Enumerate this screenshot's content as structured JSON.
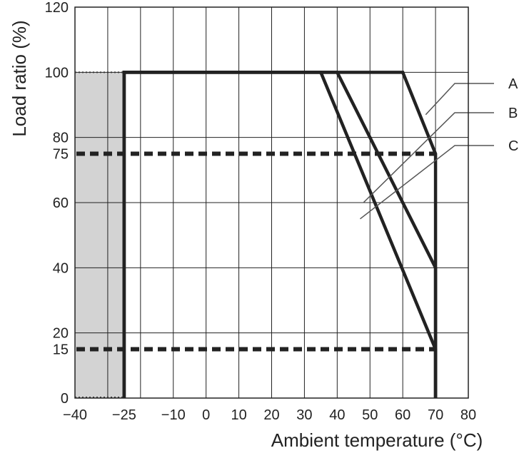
{
  "chart_data": {
    "type": "line",
    "xlabel": "Ambient temperature (°C)",
    "ylabel": "Load ratio (%)",
    "xlim": [
      -40,
      80
    ],
    "ylim": [
      0,
      120
    ],
    "x_ticks": [
      -40,
      -25,
      -10,
      0,
      10,
      20,
      30,
      40,
      50,
      60,
      70,
      80
    ],
    "x_tick_labels": [
      "−40",
      "−25",
      "−10",
      "0",
      "10",
      "20",
      "30",
      "40",
      "50",
      "60",
      "70",
      "80"
    ],
    "x_grid": [
      -40,
      -30,
      -20,
      -10,
      0,
      10,
      20,
      30,
      40,
      50,
      60,
      70,
      80
    ],
    "y_ticks": [
      0,
      15,
      20,
      40,
      60,
      75,
      80,
      100,
      120
    ],
    "y_tick_labels": [
      "0",
      "15",
      "20",
      "40",
      "60",
      "75",
      "80",
      "100",
      "120"
    ],
    "y_grid": [
      0,
      20,
      40,
      60,
      80,
      100,
      120
    ],
    "grid": true,
    "shaded_region": {
      "x": [
        -40,
        -25
      ],
      "y": [
        0,
        100
      ],
      "color": "#d3d3d3"
    },
    "dashed_lines": [
      {
        "y": 75,
        "x": [
          -40,
          70
        ]
      },
      {
        "y": 15,
        "x": [
          -40,
          70
        ]
      }
    ],
    "series": [
      {
        "name": "A",
        "x": [
          -25,
          -25,
          60,
          70,
          70
        ],
        "y": [
          0,
          100,
          100,
          75,
          0
        ]
      },
      {
        "name": "B",
        "x": [
          -25,
          -25,
          40,
          70,
          70
        ],
        "y": [
          0,
          100,
          100,
          40,
          0
        ]
      },
      {
        "name": "C",
        "x": [
          -25,
          -25,
          35,
          70,
          70
        ],
        "y": [
          0,
          100,
          100,
          15,
          0
        ]
      }
    ],
    "legend_position": "right",
    "colors": {
      "line": "#222222",
      "grid": "#222222",
      "shade": "#d3d3d3",
      "leader": "#555555"
    }
  }
}
